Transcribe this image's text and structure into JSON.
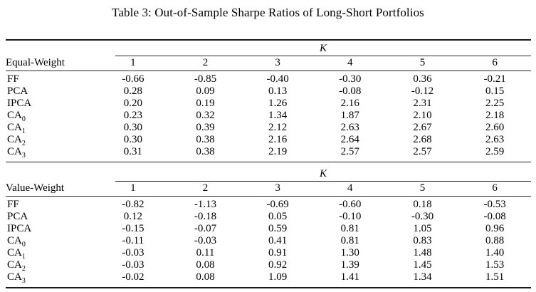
{
  "title": "Table 3: Out-of-Sample Sharpe Ratios of Long-Short Portfolios",
  "k_label": "K",
  "panels": [
    {
      "name": "Equal-Weight",
      "columns": [
        "1",
        "2",
        "3",
        "4",
        "5",
        "6"
      ],
      "rows": [
        {
          "label": "FF",
          "sub": "",
          "values": [
            "-0.66",
            "-0.85",
            "-0.40",
            "-0.30",
            "0.36",
            "-0.21"
          ]
        },
        {
          "label": "PCA",
          "sub": "",
          "values": [
            "0.28",
            "0.09",
            "0.13",
            "-0.08",
            "-0.12",
            "0.15"
          ]
        },
        {
          "label": "IPCA",
          "sub": "",
          "values": [
            "0.20",
            "0.19",
            "1.26",
            "2.16",
            "2.31",
            "2.25"
          ]
        },
        {
          "label": "CA",
          "sub": "0",
          "values": [
            "0.23",
            "0.32",
            "1.34",
            "1.87",
            "2.10",
            "2.18"
          ]
        },
        {
          "label": "CA",
          "sub": "1",
          "values": [
            "0.30",
            "0.39",
            "2.12",
            "2.63",
            "2.67",
            "2.60"
          ]
        },
        {
          "label": "CA",
          "sub": "2",
          "values": [
            "0.30",
            "0.38",
            "2.16",
            "2.64",
            "2.68",
            "2.63"
          ]
        },
        {
          "label": "CA",
          "sub": "3",
          "values": [
            "0.31",
            "0.38",
            "2.19",
            "2.57",
            "2.57",
            "2.59"
          ]
        }
      ]
    },
    {
      "name": "Value-Weight",
      "columns": [
        "1",
        "2",
        "3",
        "4",
        "5",
        "6"
      ],
      "rows": [
        {
          "label": "FF",
          "sub": "",
          "values": [
            "-0.82",
            "-1.13",
            "-0.69",
            "-0.60",
            "0.18",
            "-0.53"
          ]
        },
        {
          "label": "PCA",
          "sub": "",
          "values": [
            "0.12",
            "-0.18",
            "0.05",
            "-0.10",
            "-0.30",
            "-0.08"
          ]
        },
        {
          "label": "IPCA",
          "sub": "",
          "values": [
            "-0.15",
            "-0.07",
            "0.59",
            "0.81",
            "1.05",
            "0.96"
          ]
        },
        {
          "label": "CA",
          "sub": "0",
          "values": [
            "-0.11",
            "-0.03",
            "0.41",
            "0.81",
            "0.83",
            "0.88"
          ]
        },
        {
          "label": "CA",
          "sub": "1",
          "values": [
            "-0.03",
            "0.11",
            "0.91",
            "1.30",
            "1.48",
            "1.40"
          ]
        },
        {
          "label": "CA",
          "sub": "2",
          "values": [
            "-0.03",
            "0.08",
            "0.92",
            "1.39",
            "1.45",
            "1.53"
          ]
        },
        {
          "label": "CA",
          "sub": "3",
          "values": [
            "-0.02",
            "0.08",
            "1.09",
            "1.41",
            "1.34",
            "1.51"
          ]
        }
      ]
    }
  ],
  "chart_data": {
    "type": "table",
    "title": "Table 3: Out-of-Sample Sharpe Ratios of Long-Short Portfolios",
    "column_group_label": "K",
    "columns": [
      1,
      2,
      3,
      4,
      5,
      6
    ],
    "panels": [
      {
        "name": "Equal-Weight",
        "series": [
          {
            "name": "FF",
            "values": [
              -0.66,
              -0.85,
              -0.4,
              -0.3,
              0.36,
              -0.21
            ]
          },
          {
            "name": "PCA",
            "values": [
              0.28,
              0.09,
              0.13,
              -0.08,
              -0.12,
              0.15
            ]
          },
          {
            "name": "IPCA",
            "values": [
              0.2,
              0.19,
              1.26,
              2.16,
              2.31,
              2.25
            ]
          },
          {
            "name": "CA0",
            "values": [
              0.23,
              0.32,
              1.34,
              1.87,
              2.1,
              2.18
            ]
          },
          {
            "name": "CA1",
            "values": [
              0.3,
              0.39,
              2.12,
              2.63,
              2.67,
              2.6
            ]
          },
          {
            "name": "CA2",
            "values": [
              0.3,
              0.38,
              2.16,
              2.64,
              2.68,
              2.63
            ]
          },
          {
            "name": "CA3",
            "values": [
              0.31,
              0.38,
              2.19,
              2.57,
              2.57,
              2.59
            ]
          }
        ]
      },
      {
        "name": "Value-Weight",
        "series": [
          {
            "name": "FF",
            "values": [
              -0.82,
              -1.13,
              -0.69,
              -0.6,
              0.18,
              -0.53
            ]
          },
          {
            "name": "PCA",
            "values": [
              0.12,
              -0.18,
              0.05,
              -0.1,
              -0.3,
              -0.08
            ]
          },
          {
            "name": "IPCA",
            "values": [
              -0.15,
              -0.07,
              0.59,
              0.81,
              1.05,
              0.96
            ]
          },
          {
            "name": "CA0",
            "values": [
              -0.11,
              -0.03,
              0.41,
              0.81,
              0.83,
              0.88
            ]
          },
          {
            "name": "CA1",
            "values": [
              -0.03,
              0.11,
              0.91,
              1.3,
              1.48,
              1.4
            ]
          },
          {
            "name": "CA2",
            "values": [
              -0.03,
              0.08,
              0.92,
              1.39,
              1.45,
              1.53
            ]
          },
          {
            "name": "CA3",
            "values": [
              -0.02,
              0.08,
              1.09,
              1.41,
              1.34,
              1.51
            ]
          }
        ]
      }
    ]
  }
}
